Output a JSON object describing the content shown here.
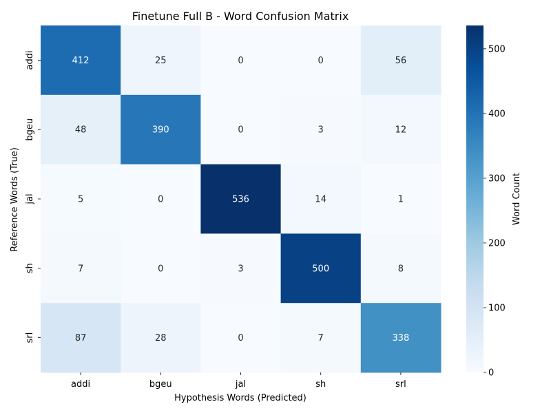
{
  "chart_data": {
    "type": "heatmap",
    "title": "Finetune Full B - Word Confusion Matrix",
    "xlabel": "Hypothesis Words (Predicted)",
    "ylabel": "Reference Words (True)",
    "x_categories": [
      "addi",
      "bgeu",
      "jal",
      "sh",
      "srl"
    ],
    "y_categories": [
      "addi",
      "bgeu",
      "jal",
      "sh",
      "srl"
    ],
    "values": [
      [
        412,
        25,
        0,
        0,
        56
      ],
      [
        48,
        390,
        0,
        3,
        12
      ],
      [
        5,
        0,
        536,
        14,
        1
      ],
      [
        7,
        0,
        3,
        500,
        8
      ],
      [
        87,
        28,
        0,
        7,
        338
      ]
    ],
    "colorbar": {
      "label": "Word Count",
      "range": [
        0,
        536
      ],
      "ticks": [
        0,
        100,
        200,
        300,
        400,
        500
      ],
      "colormap": "Blues",
      "colormap_stops": [
        "#f7fbff",
        "#deebf7",
        "#c6dbef",
        "#9ecae1",
        "#6baed6",
        "#4292c6",
        "#2171b5",
        "#08519c",
        "#08306b"
      ]
    },
    "annotation_colors": {
      "dark": "#262626",
      "light": "#ffffff"
    }
  }
}
